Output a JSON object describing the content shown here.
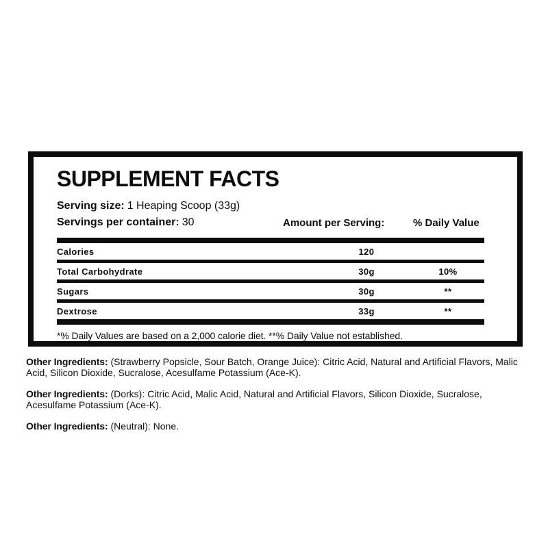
{
  "panel": {
    "title": "SUPPLEMENT FACTS",
    "serving_size_label": "Serving size:",
    "serving_size_value": "1 Heaping Scoop (33g)",
    "servings_label": "Servings per container:",
    "servings_value": "30",
    "amount_header": "Amount per Serving:",
    "dv_header": "% Daily Value",
    "rows": [
      {
        "name": "Calories",
        "amount": "120",
        "dv": ""
      },
      {
        "name": "Total Carbohydrate",
        "amount": "30g",
        "dv": "10%"
      },
      {
        "name": "Sugars",
        "amount": "30g",
        "dv": "**"
      },
      {
        "name": "Dextrose",
        "amount": "33g",
        "dv": "**"
      }
    ],
    "footnote": "*% Daily Values are based on a 2,000 calorie diet. **% Daily Value not established."
  },
  "ingredients": [
    {
      "label": "Other Ingredients:",
      "text": "(Strawberry Popsicle, Sour Batch, Orange Juice): Citric Acid, Natural and Artificial Flavors, Malic Acid, Silicon Dioxide, Sucralose, Acesulfame Potassium (Ace-K)."
    },
    {
      "label": "Other Ingredients:",
      "text": "(Dorks): Citric Acid, Malic Acid, Natural and Artificial Flavors, Silicon Dioxide, Sucralose, Acesulfame Potassium (Ace-K)."
    },
    {
      "label": "Other Ingredients:",
      "text": "(Neutral): None."
    }
  ],
  "colors": {
    "border": "#0d0d0d",
    "bar": "#0d0d0d",
    "text": "#0d0d0d",
    "background": "#ffffff"
  }
}
